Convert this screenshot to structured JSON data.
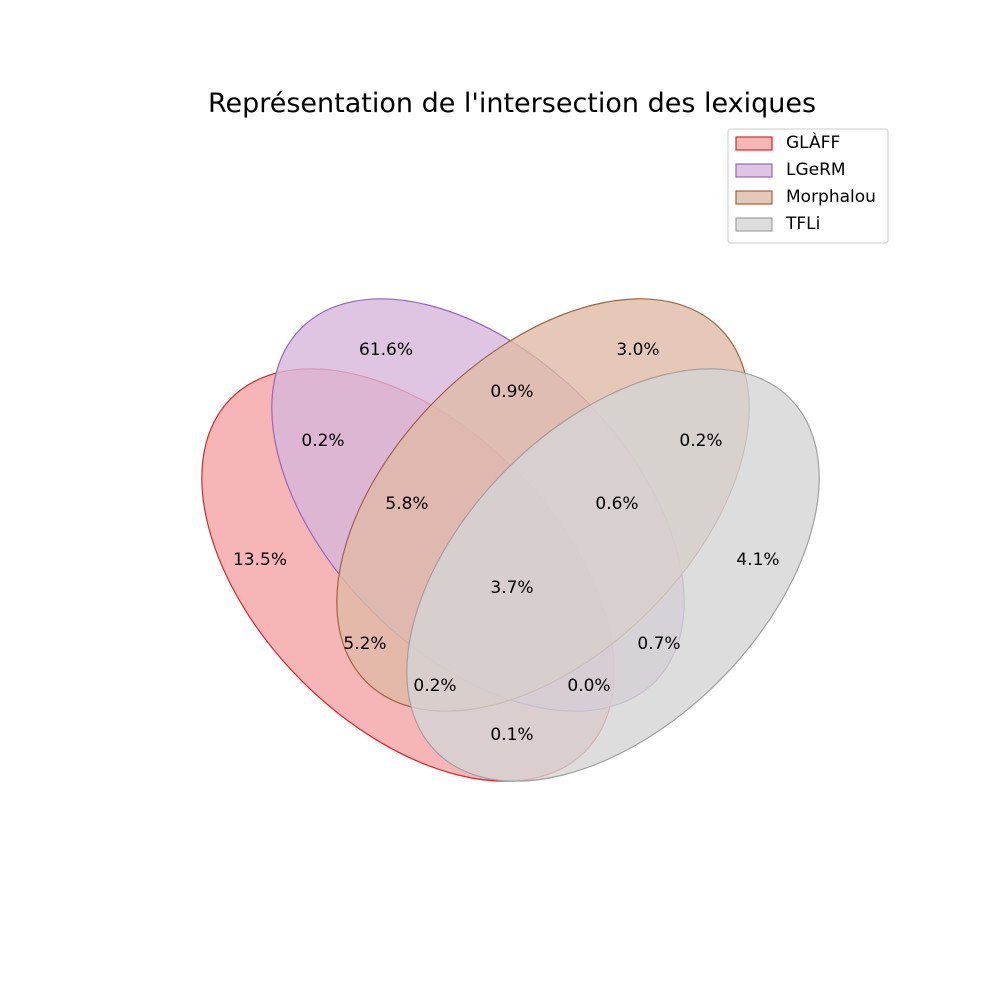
{
  "chart_data": {
    "type": "venn",
    "title": "Représentation de l'intersection des lexiques",
    "legend_position": "top-right",
    "sets": [
      {
        "name": "GLÀFF",
        "fill": "#f4a3a5",
        "stroke": "#d62728"
      },
      {
        "name": "LGeRM",
        "fill": "#d7b7da",
        "stroke": "#9467bd"
      },
      {
        "name": "Morphalou",
        "fill": "#e0baa6",
        "stroke": "#a0653e"
      },
      {
        "name": "TFLi",
        "fill": "#d5d5d5",
        "stroke": "#a0a0a0"
      }
    ],
    "regions": [
      {
        "sets": [
          "GLÀFF"
        ],
        "label": "13.5%"
      },
      {
        "sets": [
          "LGeRM"
        ],
        "label": "61.6%"
      },
      {
        "sets": [
          "Morphalou"
        ],
        "label": "3.0%"
      },
      {
        "sets": [
          "TFLi"
        ],
        "label": "4.1%"
      },
      {
        "sets": [
          "LGeRM",
          "Morphalou"
        ],
        "label": "0.9%"
      },
      {
        "sets": [
          "GLÀFF",
          "LGeRM"
        ],
        "label": "0.2%"
      },
      {
        "sets": [
          "Morphalou",
          "TFLi"
        ],
        "label": "0.2%"
      },
      {
        "sets": [
          "GLÀFF",
          "LGeRM",
          "Morphalou"
        ],
        "label": "5.8%"
      },
      {
        "sets": [
          "LGeRM",
          "Morphalou",
          "TFLi"
        ],
        "label": "0.6%"
      },
      {
        "sets": [
          "GLÀFF",
          "LGeRM",
          "Morphalou",
          "TFLi"
        ],
        "label": "3.7%"
      },
      {
        "sets": [
          "GLÀFF",
          "Morphalou"
        ],
        "label": "5.2%"
      },
      {
        "sets": [
          "LGeRM",
          "TFLi"
        ],
        "label": "0.7%"
      },
      {
        "sets": [
          "GLÀFF",
          "Morphalou",
          "TFLi"
        ],
        "label": "0.2%"
      },
      {
        "sets": [
          "GLÀFF",
          "LGeRM",
          "TFLi"
        ],
        "label": "0.0%"
      },
      {
        "sets": [
          "GLÀFF",
          "TFLi"
        ],
        "label": "0.1%"
      }
    ]
  }
}
